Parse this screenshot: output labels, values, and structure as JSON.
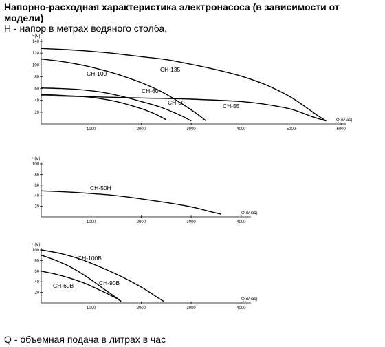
{
  "title": "Напорно-расходная характеристика электронасоса (в зависимости от модели)",
  "subtitle": "H - напор в метрах водяного столба,",
  "footer": "Q - объемная подача в литрах в час",
  "chart_data": [
    {
      "type": "line",
      "ylabel": "H(м)",
      "xlabel": "Q(л/час)",
      "xlim": [
        0,
        6000
      ],
      "ylim": [
        0,
        140
      ],
      "x_ticks": [
        1000,
        2000,
        3000,
        4000,
        5000,
        6000
      ],
      "y_ticks": [
        20,
        40,
        60,
        80,
        100,
        120,
        140
      ],
      "series": [
        {
          "name": "CH-135",
          "x": [
            0,
            500,
            1000,
            1500,
            2000,
            2500,
            3000,
            3500,
            4000,
            4500,
            5000,
            5500,
            5700
          ],
          "y": [
            128,
            126,
            123,
            119,
            114,
            109,
            101,
            92,
            81,
            66,
            45,
            16,
            5
          ]
        },
        {
          "name": "CH-100",
          "x": [
            0,
            400,
            800,
            1200,
            1600,
            2000,
            2400,
            2800,
            3100,
            3300
          ],
          "y": [
            110,
            106,
            100,
            92,
            82,
            70,
            55,
            35,
            18,
            5
          ]
        },
        {
          "name": "CH-60",
          "x": [
            0,
            400,
            800,
            1200,
            1600,
            2000,
            2400,
            2800,
            3000
          ],
          "y": [
            61,
            60,
            58,
            54,
            47,
            38,
            28,
            14,
            5
          ]
        },
        {
          "name": "CH-50",
          "x": [
            0,
            500,
            1000,
            1500,
            2000,
            2300,
            2500
          ],
          "y": [
            50,
            48,
            45,
            38,
            26,
            16,
            7
          ]
        },
        {
          "name": "CH-55",
          "x": [
            0,
            1000,
            2000,
            3000,
            4000,
            4500,
            5000,
            5400,
            5700
          ],
          "y": [
            48,
            46,
            44,
            42,
            38,
            33,
            25,
            13,
            5
          ]
        }
      ]
    },
    {
      "type": "line",
      "ylabel": "H(м)",
      "xlabel": "Q(л/час)",
      "xlim": [
        0,
        4000
      ],
      "ylim": [
        0,
        100
      ],
      "x_ticks": [
        1000,
        2000,
        3000,
        4000
      ],
      "y_ticks": [
        20,
        40,
        60,
        80,
        100
      ],
      "series": [
        {
          "name": "CH-50H",
          "x": [
            0,
            500,
            1000,
            1500,
            2000,
            2500,
            3000,
            3300,
            3600
          ],
          "y": [
            49,
            47,
            44,
            40,
            34,
            27,
            19,
            12,
            5
          ]
        }
      ]
    },
    {
      "type": "line",
      "ylabel": "H(м)",
      "xlabel": "Q(л/час)",
      "xlim": [
        0,
        4000
      ],
      "ylim": [
        0,
        100
      ],
      "x_ticks": [
        1000,
        2000,
        3000,
        4000
      ],
      "y_ticks": [
        20,
        40,
        60,
        80,
        100
      ],
      "series": [
        {
          "name": "CH-100B",
          "x": [
            0,
            400,
            800,
            1200,
            1600,
            2000,
            2300,
            2450
          ],
          "y": [
            100,
            93,
            82,
            67,
            50,
            30,
            12,
            3
          ]
        },
        {
          "name": "CH-90B",
          "x": [
            0,
            300,
            600,
            900,
            1200,
            1500,
            1600
          ],
          "y": [
            90,
            80,
            67,
            50,
            30,
            10,
            3
          ]
        },
        {
          "name": "CH-60B",
          "x": [
            0,
            300,
            600,
            900,
            1200,
            1500,
            1600
          ],
          "y": [
            60,
            54,
            46,
            36,
            23,
            9,
            3
          ]
        }
      ]
    }
  ]
}
